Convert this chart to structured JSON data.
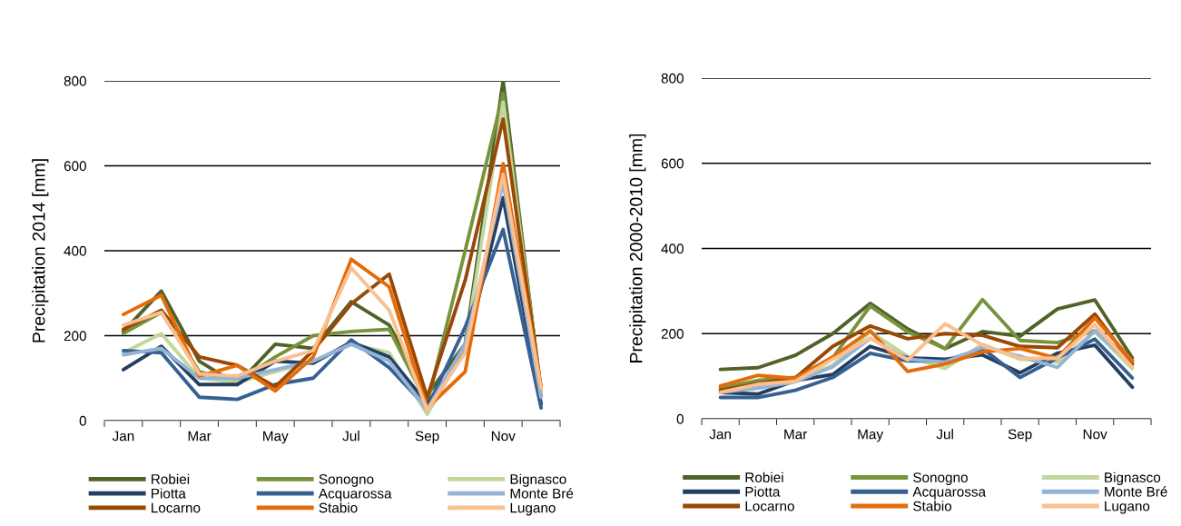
{
  "chart_data": [
    {
      "type": "line",
      "ylabel": "Precipitation 2014 [mm]",
      "categories": [
        "Jan",
        null,
        "Mar",
        null,
        "May",
        null,
        "Jul",
        null,
        "Sep",
        null,
        "Nov",
        null
      ],
      "ylim": [
        0,
        800
      ],
      "yticks": [
        0,
        200,
        400,
        600,
        800
      ],
      "grid": "y",
      "legend": "bottom",
      "series": [
        {
          "name": "Robiei",
          "color": "#4f6228",
          "values": [
            210,
            305,
            140,
            85,
            180,
            170,
            280,
            225,
            60,
            180,
            800,
            60
          ]
        },
        {
          "name": "Sonogno",
          "color": "#77933c",
          "values": [
            205,
            255,
            115,
            90,
            150,
            200,
            210,
            215,
            40,
            400,
            770,
            70
          ]
        },
        {
          "name": "Bignasco",
          "color": "#c3d69b",
          "values": [
            160,
            205,
            100,
            90,
            115,
            140,
            180,
            160,
            15,
            170,
            750,
            65
          ]
        },
        {
          "name": "Piotta",
          "color": "#243f60",
          "values": [
            120,
            175,
            85,
            85,
            140,
            135,
            185,
            150,
            40,
            160,
            525,
            40
          ]
        },
        {
          "name": "Acquarossa",
          "color": "#366092",
          "values": [
            165,
            160,
            55,
            50,
            85,
            100,
            190,
            125,
            30,
            220,
            450,
            30
          ]
        },
        {
          "name": "Monte Bré",
          "color": "#95b3d7",
          "values": [
            155,
            170,
            100,
            100,
            120,
            140,
            180,
            140,
            25,
            180,
            560,
            55
          ]
        },
        {
          "name": "Locarno",
          "color": "#984807",
          "values": [
            215,
            260,
            150,
            130,
            80,
            165,
            275,
            345,
            55,
            330,
            710,
            75
          ]
        },
        {
          "name": "Stabio",
          "color": "#e46c0a",
          "values": [
            250,
            295,
            105,
            130,
            70,
            150,
            380,
            315,
            30,
            115,
            605,
            80
          ]
        },
        {
          "name": "Lugano",
          "color": "#fac090",
          "values": [
            225,
            255,
            110,
            105,
            140,
            165,
            360,
            260,
            25,
            160,
            580,
            75
          ]
        }
      ]
    },
    {
      "type": "line",
      "ylabel": "Precipitation 2000-2010 [mm]",
      "categories": [
        "Jan",
        null,
        "Mar",
        null,
        "May",
        null,
        "Jul",
        null,
        "Sep",
        null,
        "Nov",
        null
      ],
      "ylim": [
        0,
        800
      ],
      "yticks": [
        0,
        200,
        400,
        600,
        800
      ],
      "grid": "y",
      "legend": "bottom",
      "series": [
        {
          "name": "Robiei",
          "color": "#4f6228",
          "values": [
            116,
            120,
            149,
            200,
            271,
            211,
            165,
            205,
            194,
            258,
            279,
            143
          ]
        },
        {
          "name": "Sonogno",
          "color": "#77933c",
          "values": [
            72,
            90,
            97,
            143,
            265,
            204,
            165,
            280,
            184,
            179,
            207,
            136
          ]
        },
        {
          "name": "Bignasco",
          "color": "#c3d69b",
          "values": [
            65,
            79,
            90,
            126,
            204,
            147,
            118,
            175,
            140,
            133,
            204,
            118
          ]
        },
        {
          "name": "Piotta",
          "color": "#243f60",
          "values": [
            62,
            58,
            90,
            104,
            170,
            143,
            140,
            150,
            108,
            154,
            173,
            74
          ]
        },
        {
          "name": "Acquarossa",
          "color": "#366092",
          "values": [
            50,
            50,
            67,
            97,
            154,
            136,
            136,
            165,
            97,
            143,
            187,
            96
          ]
        },
        {
          "name": "Monte Bré",
          "color": "#95b3d7",
          "values": [
            62,
            72,
            87,
            122,
            189,
            140,
            133,
            168,
            147,
            121,
            207,
            126
          ]
        },
        {
          "name": "Locarno",
          "color": "#984807",
          "values": [
            67,
            83,
            96,
            170,
            218,
            188,
            200,
            196,
            170,
            167,
            246,
            129
          ]
        },
        {
          "name": "Stabio",
          "color": "#e46c0a",
          "values": [
            77,
            102,
            95,
            145,
            207,
            111,
            129,
            157,
            165,
            142,
            237,
            136
          ]
        },
        {
          "name": "Lugano",
          "color": "#fac090",
          "values": [
            62,
            81,
            88,
            140,
            189,
            138,
            223,
            173,
            142,
            142,
            221,
            121
          ]
        }
      ]
    }
  ]
}
